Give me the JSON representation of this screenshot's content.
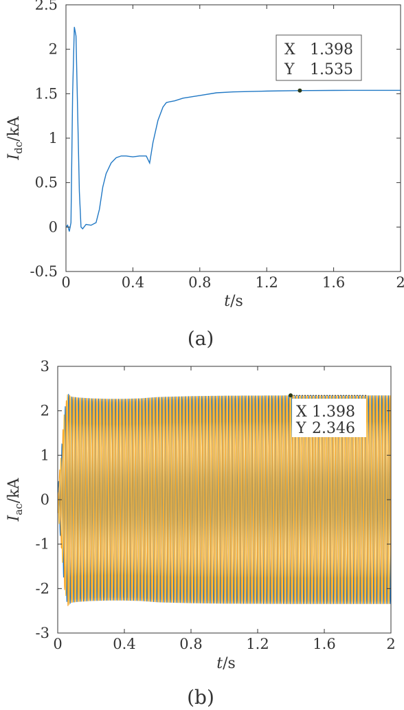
{
  "chart_data": [
    {
      "type": "line",
      "panel_label": "(a)",
      "ylabel_main": "I",
      "ylabel_sub": "dc",
      "ylabel_unit": "/kA",
      "xlabel_italic": "t",
      "xlabel_unit": "/s",
      "xlim": [
        0,
        2
      ],
      "ylim": [
        -0.5,
        2.5
      ],
      "xticks": [
        "0",
        "0.4",
        "0.8",
        "1.2",
        "1.6",
        "2"
      ],
      "xtick_values": [
        0,
        0.4,
        0.8,
        1.2,
        1.6,
        2
      ],
      "yticks": [
        "2.5",
        "2",
        "1.5",
        "1",
        "0.5",
        "0",
        "-0.5"
      ],
      "ytick_values": [
        2.5,
        2,
        1.5,
        1,
        0.5,
        0,
        -0.5
      ],
      "grid": false,
      "series": [
        {
          "color": "#1f77c4",
          "x": [
            0,
            0.01,
            0.02,
            0.03,
            0.04,
            0.05,
            0.06,
            0.07,
            0.08,
            0.09,
            0.1,
            0.12,
            0.15,
            0.18,
            0.2,
            0.22,
            0.24,
            0.27,
            0.3,
            0.33,
            0.36,
            0.4,
            0.44,
            0.48,
            0.5,
            0.52,
            0.55,
            0.58,
            0.6,
            0.62,
            0.65,
            0.7,
            0.8,
            0.9,
            1.0,
            1.2,
            1.4,
            1.6,
            1.8,
            2.0
          ],
          "y": [
            0,
            0.02,
            -0.05,
            0.05,
            1.5,
            2.25,
            2.15,
            1.3,
            0.4,
            0.0,
            -0.02,
            0.03,
            0.02,
            0.05,
            0.2,
            0.45,
            0.6,
            0.72,
            0.78,
            0.8,
            0.8,
            0.79,
            0.8,
            0.8,
            0.72,
            0.95,
            1.2,
            1.35,
            1.4,
            1.41,
            1.42,
            1.45,
            1.48,
            1.51,
            1.52,
            1.53,
            1.535,
            1.537,
            1.538,
            1.538
          ]
        }
      ],
      "datatip": {
        "x": 1.398,
        "y": 1.535,
        "x_label": "X",
        "x_value": "1.398",
        "y_label": "Y",
        "y_value": "1.535"
      }
    },
    {
      "type": "line",
      "panel_label": "(b)",
      "ylabel_main": "I",
      "ylabel_sub": "ac",
      "ylabel_unit": "/kA",
      "xlabel_italic": "t",
      "xlabel_unit": "/s",
      "xlim": [
        0,
        2
      ],
      "ylim": [
        -3,
        3
      ],
      "xticks": [
        "0",
        "0.4",
        "0.8",
        "1.2",
        "1.6",
        "2"
      ],
      "xtick_values": [
        0,
        0.4,
        0.8,
        1.2,
        1.6,
        2
      ],
      "yticks": [
        "3",
        "2",
        "1",
        "0",
        "-1",
        "-2",
        "-3"
      ],
      "ytick_values": [
        3,
        2,
        1,
        0,
        -1,
        -2,
        -3
      ],
      "grid": false,
      "frequency_hz": 50,
      "envelope_t": [
        0,
        0.02,
        0.04,
        0.06,
        0.08,
        0.12,
        0.2,
        0.3,
        0.4,
        0.5,
        0.6,
        0.8,
        1.0,
        1.4,
        1.6,
        1.8,
        2.0
      ],
      "envelope_amp": [
        0.2,
        1.0,
        2.0,
        2.4,
        2.32,
        2.3,
        2.28,
        2.27,
        2.27,
        2.28,
        2.31,
        2.33,
        2.34,
        2.346,
        2.346,
        2.346,
        2.346
      ],
      "series": [
        {
          "color": "#1f77c4",
          "phase_deg": 0
        },
        {
          "color": "#f39a1c",
          "phase_deg": 120
        },
        {
          "color": "#ffc040",
          "phase_deg": 240
        }
      ],
      "datatip": {
        "x": 1.398,
        "y": 2.346,
        "x_label": "X",
        "x_value": "1.398",
        "y_label": "Y",
        "y_value": "2.346"
      }
    }
  ]
}
